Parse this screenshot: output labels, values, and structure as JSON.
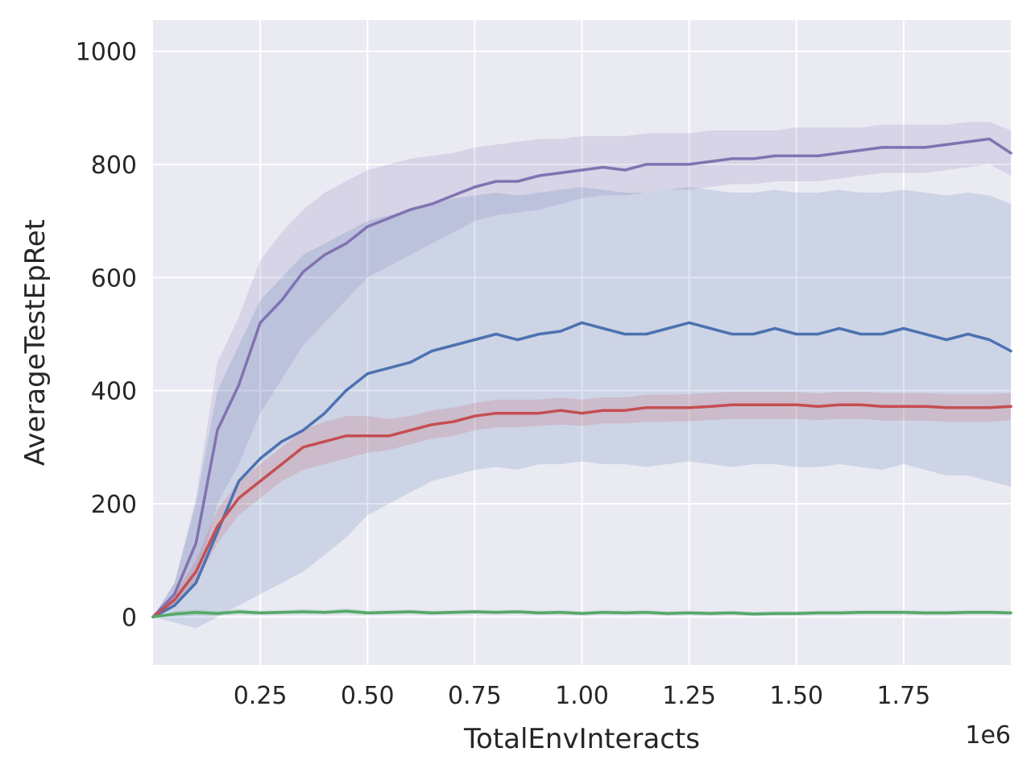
{
  "chart_data": {
    "type": "line",
    "title": "",
    "xlabel": "TotalEnvInteracts",
    "ylabel": "AverageTestEpRet",
    "x_offset_label": "1e6",
    "xlim": [
      0,
      2000000
    ],
    "ylim": [
      -85,
      1055
    ],
    "grid": true,
    "legend": "none",
    "background_color": "#eaeaf2",
    "grid_color": "#ffffff",
    "x_ticks": [
      250000,
      500000,
      750000,
      1000000,
      1250000,
      1500000,
      1750000
    ],
    "x_tick_labels": [
      "0.25",
      "0.50",
      "0.75",
      "1.00",
      "1.25",
      "1.50",
      "1.75"
    ],
    "y_ticks": [
      0,
      200,
      400,
      600,
      800,
      1000
    ],
    "y_tick_labels": [
      "0",
      "200",
      "400",
      "600",
      "800",
      "1000"
    ],
    "x": [
      0,
      50000,
      100000,
      150000,
      200000,
      250000,
      300000,
      350000,
      400000,
      450000,
      500000,
      550000,
      600000,
      650000,
      700000,
      750000,
      800000,
      850000,
      900000,
      950000,
      1000000,
      1050000,
      1100000,
      1150000,
      1200000,
      1250000,
      1300000,
      1350000,
      1400000,
      1450000,
      1500000,
      1550000,
      1600000,
      1650000,
      1700000,
      1750000,
      1800000,
      1850000,
      1900000,
      1950000,
      2000000
    ],
    "series": [
      {
        "color": "#8172b2",
        "values": [
          0,
          40,
          130,
          330,
          410,
          520,
          560,
          610,
          640,
          660,
          690,
          705,
          720,
          730,
          745,
          760,
          770,
          770,
          780,
          785,
          790,
          795,
          790,
          800,
          800,
          800,
          805,
          810,
          810,
          815,
          815,
          815,
          820,
          825,
          830,
          830,
          830,
          835,
          840,
          845,
          820
        ],
        "band_low": [
          0,
          20,
          60,
          200,
          270,
          360,
          420,
          480,
          520,
          560,
          600,
          620,
          640,
          660,
          680,
          700,
          710,
          715,
          720,
          730,
          740,
          745,
          745,
          750,
          755,
          755,
          760,
          765,
          765,
          770,
          770,
          770,
          775,
          780,
          785,
          785,
          785,
          790,
          795,
          800,
          780
        ],
        "band_high": [
          0,
          60,
          210,
          450,
          530,
          630,
          680,
          720,
          750,
          770,
          790,
          800,
          810,
          815,
          820,
          830,
          835,
          840,
          845,
          845,
          850,
          850,
          850,
          855,
          855,
          855,
          860,
          860,
          860,
          860,
          865,
          865,
          865,
          865,
          870,
          870,
          870,
          870,
          875,
          875,
          860
        ]
      },
      {
        "color": "#4c72b0",
        "values": [
          0,
          20,
          60,
          150,
          240,
          280,
          310,
          330,
          360,
          400,
          430,
          440,
          450,
          470,
          480,
          490,
          500,
          490,
          500,
          505,
          520,
          510,
          500,
          500,
          510,
          520,
          510,
          500,
          500,
          510,
          500,
          500,
          510,
          500,
          500,
          510,
          500,
          490,
          500,
          490,
          470
        ],
        "band_low": [
          0,
          -10,
          -20,
          0,
          20,
          40,
          60,
          80,
          110,
          140,
          180,
          200,
          220,
          240,
          250,
          260,
          265,
          260,
          270,
          270,
          275,
          270,
          270,
          265,
          270,
          275,
          270,
          265,
          270,
          270,
          265,
          265,
          270,
          265,
          260,
          270,
          260,
          250,
          250,
          240,
          230
        ],
        "band_high": [
          0,
          60,
          200,
          400,
          480,
          560,
          600,
          640,
          660,
          680,
          700,
          710,
          720,
          730,
          740,
          745,
          750,
          745,
          750,
          755,
          760,
          755,
          750,
          750,
          755,
          760,
          755,
          750,
          750,
          755,
          750,
          750,
          755,
          750,
          750,
          755,
          750,
          745,
          750,
          745,
          730
        ]
      },
      {
        "color": "#c44e52",
        "values": [
          0,
          30,
          80,
          160,
          210,
          240,
          270,
          300,
          310,
          320,
          320,
          320,
          330,
          340,
          345,
          355,
          360,
          360,
          360,
          365,
          360,
          365,
          365,
          370,
          370,
          370,
          372,
          375,
          375,
          375,
          375,
          372,
          375,
          375,
          372,
          372,
          372,
          370,
          370,
          370,
          372
        ],
        "band_low": [
          0,
          20,
          60,
          130,
          180,
          210,
          240,
          260,
          270,
          280,
          290,
          295,
          305,
          315,
          320,
          330,
          335,
          335,
          338,
          340,
          338,
          342,
          342,
          345,
          345,
          346,
          348,
          350,
          350,
          350,
          350,
          348,
          350,
          350,
          347,
          347,
          347,
          345,
          345,
          345,
          348
        ],
        "band_high": [
          0,
          40,
          100,
          190,
          240,
          270,
          300,
          330,
          345,
          355,
          355,
          350,
          355,
          365,
          370,
          378,
          384,
          384,
          384,
          388,
          384,
          388,
          388,
          393,
          393,
          394,
          396,
          398,
          398,
          398,
          398,
          395,
          398,
          398,
          396,
          396,
          396,
          394,
          394,
          394,
          396
        ]
      },
      {
        "color": "#55a868",
        "values": [
          0,
          5,
          8,
          6,
          9,
          7,
          8,
          9,
          8,
          10,
          7,
          8,
          9,
          7,
          8,
          9,
          8,
          9,
          7,
          8,
          6,
          8,
          7,
          8,
          6,
          7,
          6,
          7,
          5,
          6,
          6,
          7,
          7,
          8,
          8,
          8,
          7,
          7,
          8,
          8,
          7
        ],
        "band_low": [
          0,
          0,
          3,
          2,
          4,
          3,
          4,
          4,
          4,
          5,
          3,
          4,
          5,
          3,
          4,
          5,
          4,
          5,
          3,
          4,
          2,
          4,
          3,
          4,
          2,
          3,
          2,
          3,
          1,
          2,
          2,
          3,
          3,
          4,
          4,
          4,
          3,
          3,
          4,
          4,
          3
        ],
        "band_high": [
          0,
          10,
          13,
          10,
          14,
          11,
          12,
          14,
          12,
          15,
          11,
          12,
          13,
          11,
          12,
          13,
          12,
          13,
          11,
          12,
          10,
          12,
          11,
          12,
          10,
          11,
          10,
          11,
          9,
          10,
          10,
          11,
          11,
          12,
          12,
          12,
          11,
          11,
          12,
          12,
          11
        ]
      }
    ]
  }
}
